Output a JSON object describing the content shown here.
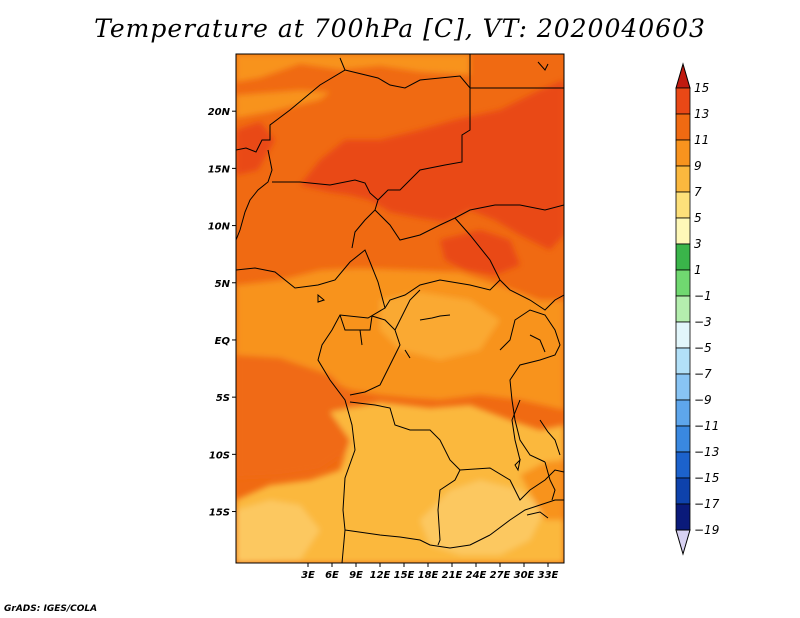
{
  "title": "Temperature at 700hPa [C], VT: 2020040603",
  "credit": "GrADS: IGES/COLA",
  "map": {
    "lon_range": [
      -6,
      35
    ],
    "lat_range": [
      -19.5,
      25
    ],
    "lon_ticks": [
      {
        "value": 3,
        "label": "3E"
      },
      {
        "value": 6,
        "label": "6E"
      },
      {
        "value": 9,
        "label": "9E"
      },
      {
        "value": 12,
        "label": "12E"
      },
      {
        "value": 15,
        "label": "15E"
      },
      {
        "value": 18,
        "label": "18E"
      },
      {
        "value": 21,
        "label": "21E"
      },
      {
        "value": 24,
        "label": "24E"
      },
      {
        "value": 27,
        "label": "27E"
      },
      {
        "value": 30,
        "label": "30E"
      },
      {
        "value": 33,
        "label": "33E"
      }
    ],
    "lat_ticks": [
      {
        "value": 20,
        "label": "20N"
      },
      {
        "value": 15,
        "label": "15N"
      },
      {
        "value": 10,
        "label": "10N"
      },
      {
        "value": 5,
        "label": "5N"
      },
      {
        "value": 0,
        "label": "EQ"
      },
      {
        "value": -5,
        "label": "5S"
      },
      {
        "value": -10,
        "label": "10S"
      },
      {
        "value": -15,
        "label": "15S"
      }
    ]
  },
  "colorbar": {
    "levels": [
      {
        "label": "15",
        "color": "#d92a14"
      },
      {
        "label": "13",
        "color": "#e94816"
      },
      {
        "label": "11",
        "color": "#f06a12"
      },
      {
        "label": "9",
        "color": "#f8931e"
      },
      {
        "label": "7",
        "color": "#fbb83e"
      },
      {
        "label": "5",
        "color": "#fde07a"
      },
      {
        "label": "3",
        "color": "#fef8b8"
      },
      {
        "label": "1",
        "color": "#3ab54a"
      },
      {
        "label": "−1",
        "color": "#70d870"
      },
      {
        "label": "−3",
        "color": "#b4eeae"
      },
      {
        "label": "−5",
        "color": "#e2f6fb"
      },
      {
        "label": "−7",
        "color": "#b2e0f8"
      },
      {
        "label": "−9",
        "color": "#88c4f4"
      },
      {
        "label": "−11",
        "color": "#5ea6ec"
      },
      {
        "label": "−13",
        "color": "#3a88e0"
      },
      {
        "label": "−15",
        "color": "#1c62cc"
      },
      {
        "label": "−17",
        "color": "#0e42ac"
      },
      {
        "label": "−19",
        "color": "#0a1a7a"
      }
    ],
    "top_cap_color": "#c01a10",
    "bottom_cap_color": "#d8d2f2"
  }
}
